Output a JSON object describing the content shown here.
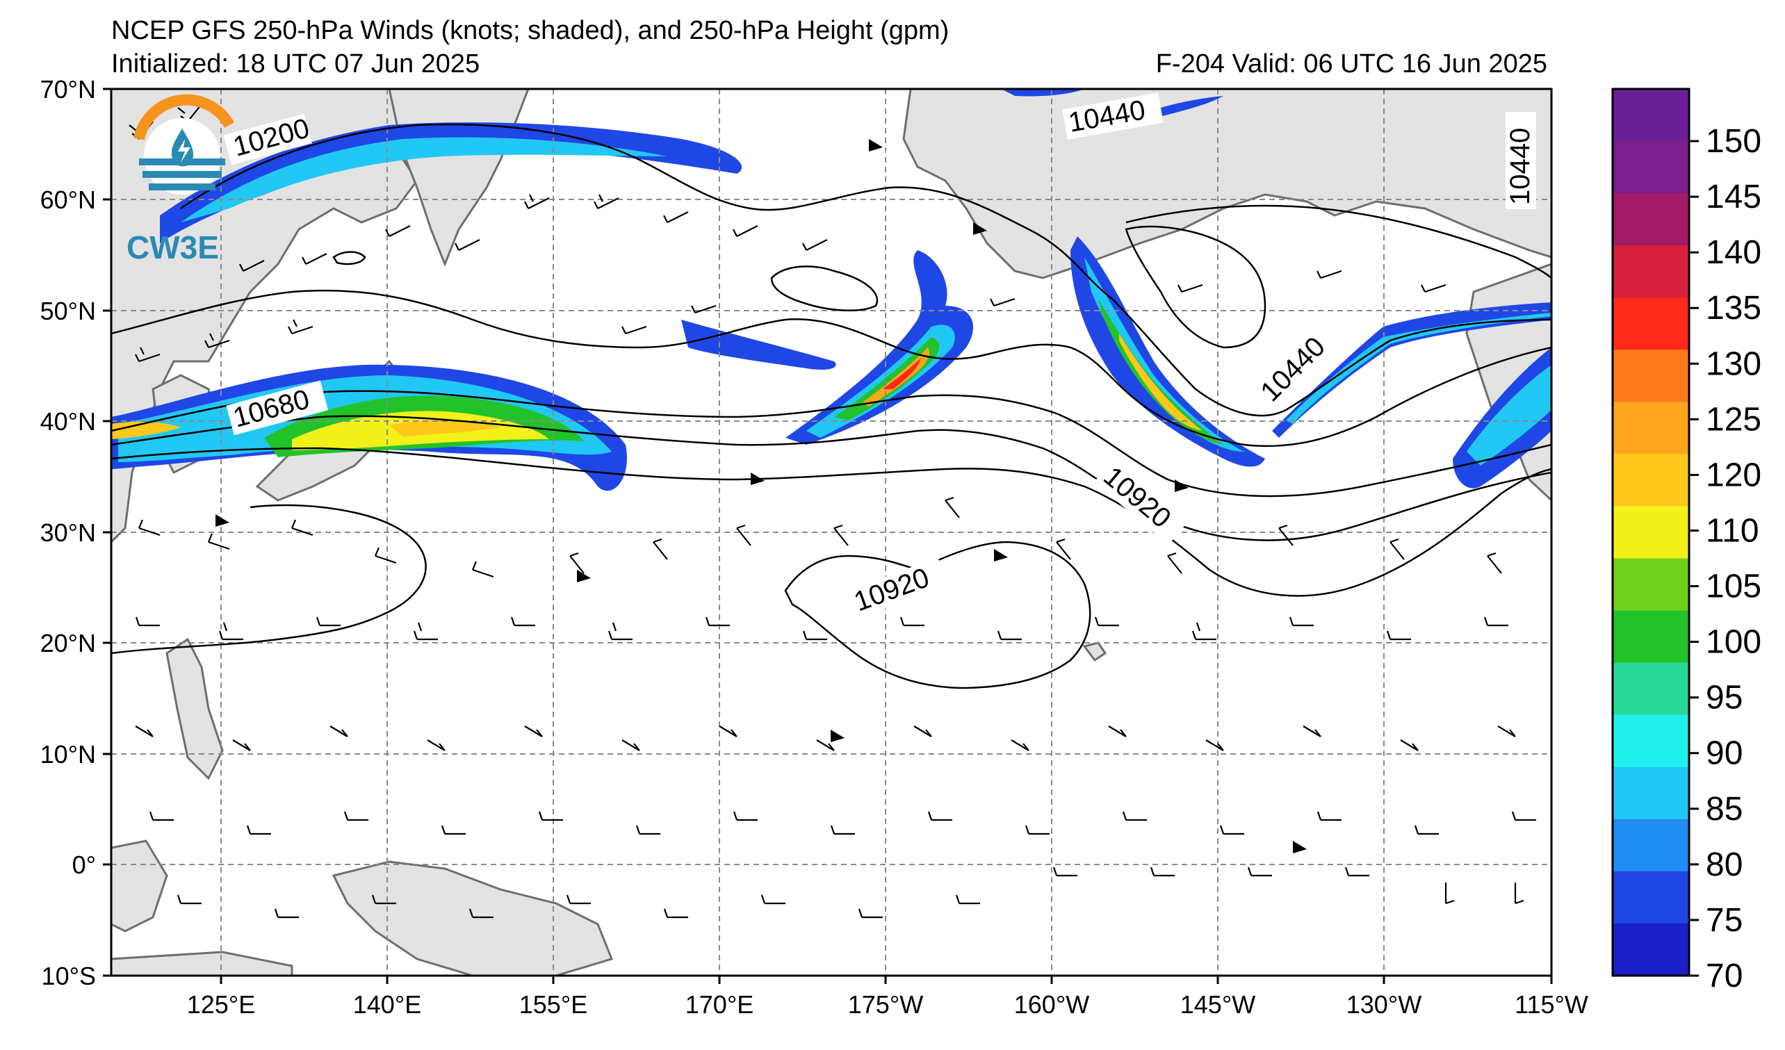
{
  "title": {
    "line1": "NCEP GFS 250-hPa Winds (knots; shaded), and 250-hPa Height (gpm)",
    "initialized": "Initialized: 18 UTC 07 Jun 2025",
    "valid": "F-204  Valid: 06 UTC 16 Jun 2025"
  },
  "logo": {
    "text": "CW3E"
  },
  "lat_labels": [
    "70°N",
    "60°N",
    "50°N",
    "40°N",
    "30°N",
    "20°N",
    "10°N",
    "0°",
    "10°S"
  ],
  "lon_labels": [
    "125°E",
    "140°E",
    "155°E",
    "170°E",
    "175°W",
    "160°W",
    "145°W",
    "130°W",
    "115°W"
  ],
  "contour_labels": [
    "10200",
    "10440",
    "10440",
    "10680",
    "10920",
    "10920",
    "10440",
    "10440"
  ],
  "colorbar": {
    "ticks": [
      "70",
      "75",
      "80",
      "85",
      "90",
      "95",
      "100",
      "105",
      "110",
      "120",
      "125",
      "130",
      "135",
      "140",
      "145",
      "150"
    ],
    "colors": [
      "#1a1fc8",
      "#1f47e6",
      "#1f8cf2",
      "#22c8f5",
      "#20f0ec",
      "#28d99a",
      "#22c22a",
      "#70d11c",
      "#f2f21a",
      "#ffc81c",
      "#ffa61c",
      "#ff7a1c",
      "#ff2a1c",
      "#d61f3c",
      "#a31a66",
      "#7a1f8c",
      "#6a1f99"
    ]
  }
}
